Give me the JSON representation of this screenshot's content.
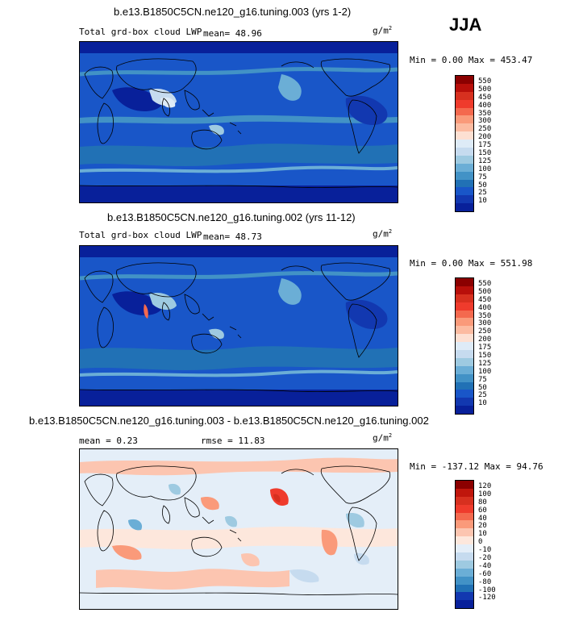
{
  "season_label": "JJA",
  "panels": [
    {
      "title": "b.e13.B1850C5CN.ne120_g16.tuning.003 (yrs 1-2)",
      "variable": "Total grd-box cloud LWP",
      "mean_text": "mean=  48.96",
      "rmse_text": "",
      "units": "g/m",
      "units_exp": "2",
      "minmax_text": "Min =   0.00 Max = 453.47",
      "colorbar_labels": [
        "550",
        "500",
        "450",
        "400",
        "350",
        "300",
        "250",
        "200",
        "175",
        "150",
        "125",
        "100",
        "75",
        "50",
        "25",
        "10"
      ],
      "colorbar_colors": [
        "#8b0000",
        "#b80f0a",
        "#d7301f",
        "#ef3b2c",
        "#f4694e",
        "#fa9a7a",
        "#fcbba1",
        "#fde0d2",
        "#deebf7",
        "#c6dbef",
        "#9ecae1",
        "#6baed6",
        "#4292c6",
        "#2171b5",
        "#1956c8",
        "#1238b0",
        "#08209a"
      ]
    },
    {
      "title": "b.e13.B1850C5CN.ne120_g16.tuning.002 (yrs 11-12)",
      "variable": "Total grd-box cloud LWP",
      "mean_text": "mean=  48.73",
      "rmse_text": "",
      "units": "g/m",
      "units_exp": "2",
      "minmax_text": "Min =   0.00 Max = 551.98",
      "colorbar_labels": [
        "550",
        "500",
        "450",
        "400",
        "350",
        "300",
        "250",
        "200",
        "175",
        "150",
        "125",
        "100",
        "75",
        "50",
        "25",
        "10"
      ],
      "colorbar_colors": [
        "#8b0000",
        "#b80f0a",
        "#d7301f",
        "#ef3b2c",
        "#f4694e",
        "#fa9a7a",
        "#fcbba1",
        "#fde0d2",
        "#deebf7",
        "#c6dbef",
        "#9ecae1",
        "#6baed6",
        "#4292c6",
        "#2171b5",
        "#1956c8",
        "#1238b0",
        "#08209a"
      ]
    },
    {
      "title": "b.e13.B1850C5CN.ne120_g16.tuning.003 - b.e13.B1850C5CN.ne120_g16.tuning.002",
      "variable": "",
      "mean_text": "mean =    0.23",
      "rmse_text": "rmse =   11.83",
      "units": "g/m",
      "units_exp": "2",
      "minmax_text": "Min = -137.12 Max =  94.76",
      "colorbar_labels": [
        "120",
        "100",
        "80",
        "60",
        "40",
        "20",
        "10",
        "0",
        "-10",
        "-20",
        "-40",
        "-60",
        "-80",
        "-100",
        "-120"
      ],
      "colorbar_colors": [
        "#8b0000",
        "#c0160c",
        "#d7301f",
        "#ef3b2c",
        "#f4694e",
        "#fa9a7a",
        "#fcc5b0",
        "#fde7dc",
        "#e4eef8",
        "#c6dbef",
        "#9ecae1",
        "#6baed6",
        "#4292c6",
        "#2171b5",
        "#1238b0",
        "#08209a"
      ]
    }
  ],
  "chart_data": [
    {
      "type": "heatmap",
      "title": "b.e13.B1850C5CN.ne120_g16.tuning.003 (yrs 1-2)",
      "variable": "Total grd-box cloud LWP",
      "units": "g/m2",
      "mean": 48.96,
      "min": 0.0,
      "max": 453.47,
      "contour_levels": [
        10,
        25,
        50,
        75,
        100,
        125,
        150,
        175,
        200,
        250,
        300,
        350,
        400,
        450,
        500,
        550
      ]
    },
    {
      "type": "heatmap",
      "title": "b.e13.B1850C5CN.ne120_g16.tuning.002 (yrs 11-12)",
      "variable": "Total grd-box cloud LWP",
      "units": "g/m2",
      "mean": 48.73,
      "min": 0.0,
      "max": 551.98,
      "contour_levels": [
        10,
        25,
        50,
        75,
        100,
        125,
        150,
        175,
        200,
        250,
        300,
        350,
        400,
        450,
        500,
        550
      ]
    },
    {
      "type": "heatmap",
      "title": "b.e13.B1850C5CN.ne120_g16.tuning.003 - b.e13.B1850C5CN.ne120_g16.tuning.002",
      "units": "g/m2",
      "mean": 0.23,
      "rmse": 11.83,
      "min": -137.12,
      "max": 94.76,
      "contour_levels": [
        -120,
        -100,
        -80,
        -60,
        -40,
        -20,
        -10,
        0,
        10,
        20,
        40,
        60,
        80,
        100,
        120
      ]
    }
  ]
}
